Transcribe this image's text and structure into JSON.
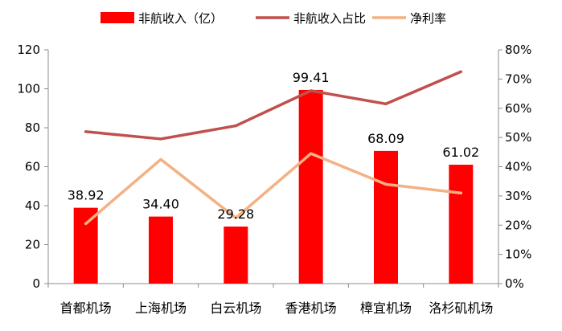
{
  "chart_data": {
    "type": "bar",
    "categories": [
      "首都机场",
      "上海机场",
      "白云机场",
      "香港机场",
      "樟宜机场",
      "洛杉矶机场"
    ],
    "series": [
      {
        "name": "非航收入（亿）",
        "type": "bar",
        "axis": "left",
        "color": "#ff0000",
        "values": [
          38.92,
          34.4,
          29.28,
          99.41,
          68.09,
          61.02
        ],
        "data_labels": [
          "38.92",
          "34.40",
          "29.28",
          "99.41",
          "68.09",
          "61.02"
        ]
      },
      {
        "name": "非航收入占比",
        "type": "line",
        "axis": "right",
        "color": "#c0504d",
        "values": [
          0.52,
          0.495,
          0.54,
          0.66,
          0.615,
          0.725
        ]
      },
      {
        "name": "净利率",
        "type": "line",
        "axis": "right",
        "color": "#f4b183",
        "values": [
          0.205,
          0.425,
          0.225,
          0.445,
          0.34,
          0.31
        ]
      }
    ],
    "y_left": {
      "lim": [
        0,
        120
      ],
      "ticks": [
        "0",
        "20",
        "40",
        "60",
        "80",
        "100",
        "120"
      ]
    },
    "y_right": {
      "lim": [
        0,
        0.8
      ],
      "ticks": [
        "0%",
        "10%",
        "20%",
        "30%",
        "40%",
        "50%",
        "60%",
        "70%",
        "80%"
      ]
    },
    "grid": false,
    "legend": "top"
  }
}
